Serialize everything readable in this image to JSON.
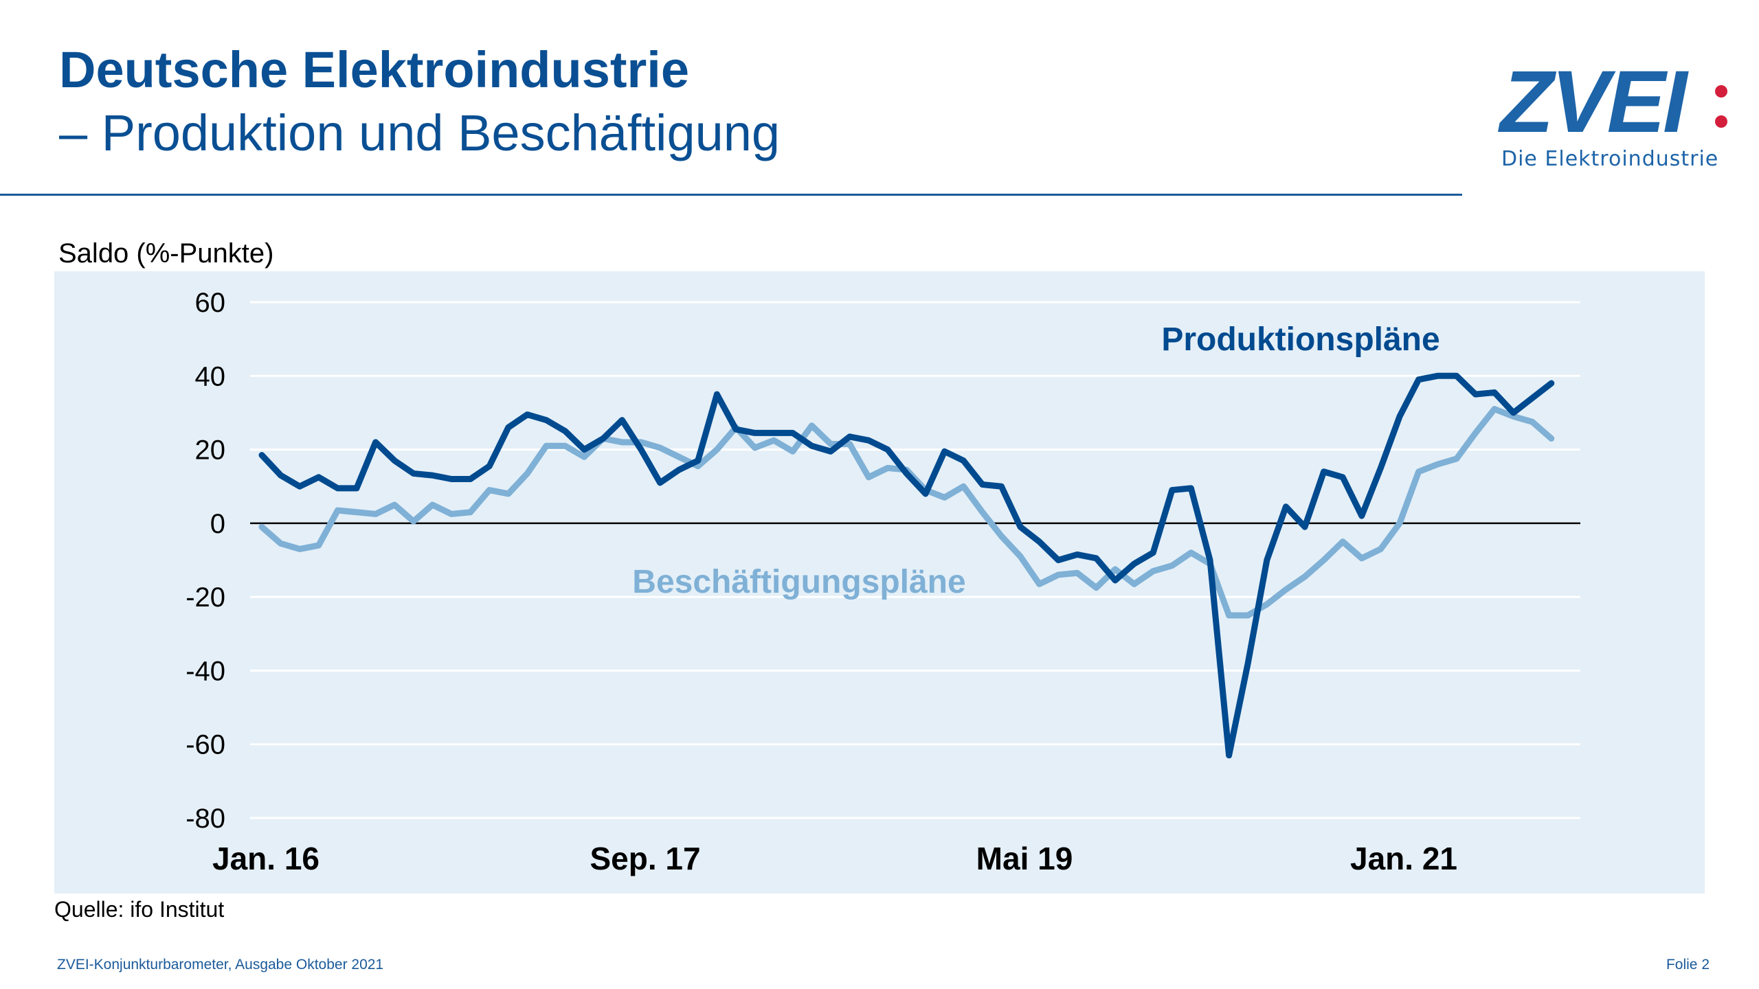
{
  "header": {
    "title_line1": "Deutsche Elektroindustrie",
    "title_line2": "– Produktion und Beschäftigung",
    "logo_text": "ZVEI:",
    "logo_subtitle": "Die Elektroindustrie"
  },
  "footer": {
    "source": "Quelle: ifo Institut",
    "publication": "ZVEI-Konjunkturbarometer, Ausgabe Oktober 2021",
    "slide": "Folie 2"
  },
  "colors": {
    "title": "#0a4f93",
    "production": "#004a8f",
    "employment": "#7fb0d6",
    "panel": "#e4eff7",
    "logo_dots": "#d41f3c"
  },
  "chart_data": {
    "type": "line",
    "ylabel": "Saldo (%-Punkte)",
    "ylim": [
      -80,
      60
    ],
    "yticks": [
      60,
      40,
      20,
      0,
      -20,
      -40,
      -60,
      -80
    ],
    "x_start": "Jan. 16",
    "x_frequency": "monthly",
    "xtick_labels": [
      {
        "label": "Jan. 16",
        "index": 0
      },
      {
        "label": "Sep. 17",
        "index": 20
      },
      {
        "label": "Mai 19",
        "index": 40
      },
      {
        "label": "Jan. 21",
        "index": 60
      }
    ],
    "grid": true,
    "zero_line": true,
    "series": [
      {
        "name": "Produktionspläne",
        "color": "#004a8f",
        "values": [
          18.5,
          13,
          10,
          12.5,
          9.5,
          9.5,
          22,
          17,
          13.5,
          13,
          12,
          12,
          15.5,
          26,
          29.5,
          28,
          25,
          20,
          23,
          28,
          20,
          11,
          14.5,
          17,
          35,
          25.5,
          24.5,
          24.5,
          24.5,
          21,
          19.5,
          23.5,
          22.5,
          20,
          13.5,
          8,
          19.5,
          17,
          10.5,
          10,
          -1,
          -5,
          -10,
          -8.5,
          -9.5,
          -15.5,
          -11,
          -8,
          9,
          9.5,
          -10,
          -63,
          -38,
          -10,
          4.5,
          -1,
          14,
          12.5,
          2,
          15,
          29,
          39,
          40,
          40,
          35,
          35.5,
          30,
          34,
          38
        ]
      },
      {
        "name": "Beschäftigungspläne",
        "color": "#7fb0d6",
        "values": [
          -1,
          -5.5,
          -7,
          -6,
          3.5,
          3,
          2.5,
          5,
          0.5,
          5,
          2.5,
          3,
          9,
          8,
          13.5,
          21,
          21,
          18,
          23,
          22,
          22,
          20.5,
          18,
          15.5,
          20,
          26,
          20.5,
          22.5,
          19.5,
          26.5,
          21.5,
          21.5,
          12.5,
          15,
          14.5,
          9,
          7,
          10,
          3,
          -3.5,
          -9,
          -16.5,
          -14,
          -13.5,
          -17.5,
          -12.5,
          -16.5,
          -13,
          -11.5,
          -8,
          -11,
          -25,
          -25,
          -22,
          -18,
          -14.5,
          -10,
          -5,
          -9.5,
          -7,
          0,
          14,
          16,
          17.5,
          24.5,
          31,
          29,
          27.5,
          23
        ]
      }
    ]
  }
}
